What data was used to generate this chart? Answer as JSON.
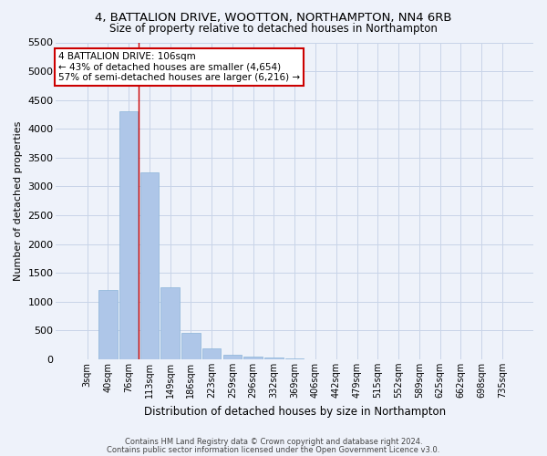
{
  "title1": "4, BATTALION DRIVE, WOOTTON, NORTHAMPTON, NN4 6RB",
  "title2": "Size of property relative to detached houses in Northampton",
  "xlabel": "Distribution of detached houses by size in Northampton",
  "ylabel": "Number of detached properties",
  "categories": [
    "3sqm",
    "40sqm",
    "76sqm",
    "113sqm",
    "149sqm",
    "186sqm",
    "223sqm",
    "259sqm",
    "296sqm",
    "332sqm",
    "369sqm",
    "406sqm",
    "442sqm",
    "479sqm",
    "515sqm",
    "552sqm",
    "589sqm",
    "625sqm",
    "662sqm",
    "698sqm",
    "735sqm"
  ],
  "values": [
    0,
    1200,
    4300,
    3250,
    1250,
    460,
    190,
    80,
    50,
    30,
    10,
    0,
    0,
    0,
    0,
    0,
    0,
    0,
    0,
    0,
    0
  ],
  "bar_color": "#aec6e8",
  "bar_edge_color": "#8ab4d8",
  "grid_color": "#c8d4e8",
  "background_color": "#eef2fa",
  "vline_x": 2.5,
  "vline_color": "#cc0000",
  "annotation_text": "4 BATTALION DRIVE: 106sqm\n← 43% of detached houses are smaller (4,654)\n57% of semi-detached houses are larger (6,216) →",
  "annotation_box_color": "#ffffff",
  "annotation_box_edge": "#cc0000",
  "ylim": [
    0,
    5500
  ],
  "yticks": [
    0,
    500,
    1000,
    1500,
    2000,
    2500,
    3000,
    3500,
    4000,
    4500,
    5000,
    5500
  ],
  "footer1": "Contains HM Land Registry data © Crown copyright and database right 2024.",
  "footer2": "Contains public sector information licensed under the Open Government Licence v3.0."
}
